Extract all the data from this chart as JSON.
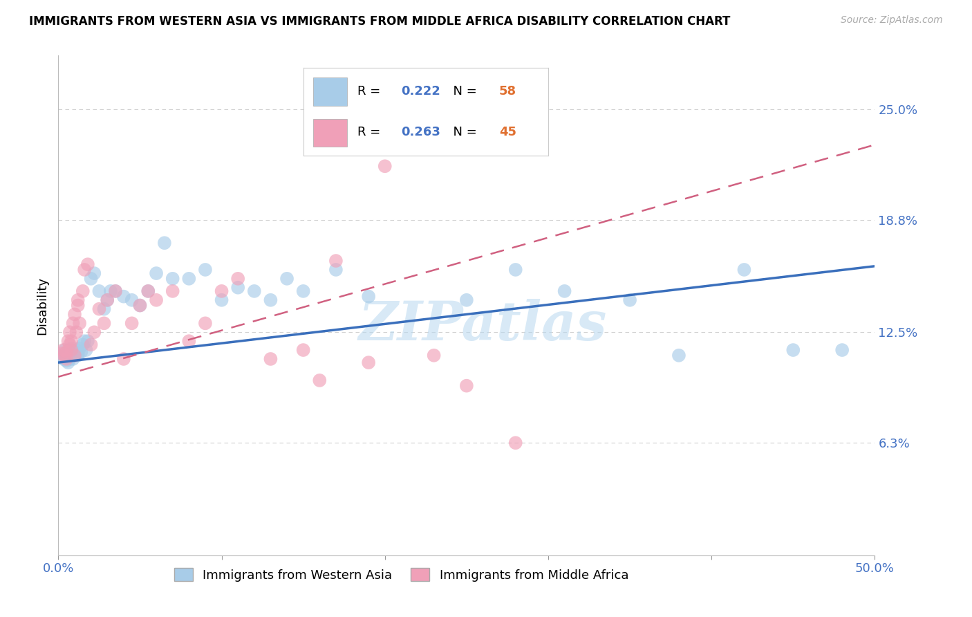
{
  "title": "IMMIGRANTS FROM WESTERN ASIA VS IMMIGRANTS FROM MIDDLE AFRICA DISABILITY CORRELATION CHART",
  "source": "Source: ZipAtlas.com",
  "ylabel": "Disability",
  "xlim": [
    0.0,
    0.5
  ],
  "ylim": [
    0.0,
    0.28
  ],
  "yticks": [
    0.063,
    0.125,
    0.188,
    0.25
  ],
  "ytick_labels": [
    "6.3%",
    "12.5%",
    "18.8%",
    "25.0%"
  ],
  "xtick_positions": [
    0.0,
    0.1,
    0.2,
    0.3,
    0.4,
    0.5
  ],
  "xtick_labels_show": [
    "0.0%",
    "",
    "",
    "",
    "",
    "50.0%"
  ],
  "series1_label": "Immigrants from Western Asia",
  "series1_R": 0.222,
  "series1_N": 58,
  "series1_color": "#a8cce8",
  "series1_line_color": "#3a6fbc",
  "series2_label": "Immigrants from Middle Africa",
  "series2_R": 0.263,
  "series2_N": 45,
  "series2_color": "#f0a0b8",
  "series2_line_color": "#d06080",
  "background_color": "#ffffff",
  "grid_color": "#d0d0d0",
  "watermark": "ZIPatlas",
  "watermark_color": "#b8d8f0",
  "legend_R_color": "#4472c4",
  "legend_N_color": "#e07030",
  "series1_x": [
    0.002,
    0.003,
    0.004,
    0.004,
    0.005,
    0.005,
    0.006,
    0.006,
    0.007,
    0.007,
    0.007,
    0.008,
    0.008,
    0.009,
    0.009,
    0.01,
    0.01,
    0.011,
    0.012,
    0.012,
    0.013,
    0.014,
    0.015,
    0.016,
    0.017,
    0.018,
    0.02,
    0.022,
    0.025,
    0.028,
    0.03,
    0.032,
    0.035,
    0.04,
    0.045,
    0.05,
    0.055,
    0.06,
    0.065,
    0.07,
    0.08,
    0.09,
    0.1,
    0.11,
    0.12,
    0.13,
    0.14,
    0.15,
    0.17,
    0.19,
    0.25,
    0.28,
    0.31,
    0.35,
    0.38,
    0.42,
    0.45,
    0.48
  ],
  "series1_y": [
    0.112,
    0.11,
    0.113,
    0.115,
    0.109,
    0.111,
    0.108,
    0.112,
    0.115,
    0.112,
    0.11,
    0.113,
    0.116,
    0.112,
    0.11,
    0.114,
    0.112,
    0.115,
    0.112,
    0.113,
    0.116,
    0.114,
    0.118,
    0.12,
    0.115,
    0.12,
    0.155,
    0.158,
    0.148,
    0.138,
    0.143,
    0.148,
    0.148,
    0.145,
    0.143,
    0.14,
    0.148,
    0.158,
    0.175,
    0.155,
    0.155,
    0.16,
    0.143,
    0.15,
    0.148,
    0.143,
    0.155,
    0.148,
    0.16,
    0.145,
    0.143,
    0.16,
    0.148,
    0.143,
    0.112,
    0.16,
    0.115,
    0.115
  ],
  "series2_x": [
    0.002,
    0.003,
    0.004,
    0.005,
    0.005,
    0.006,
    0.007,
    0.007,
    0.008,
    0.008,
    0.009,
    0.01,
    0.01,
    0.011,
    0.012,
    0.012,
    0.013,
    0.015,
    0.016,
    0.018,
    0.02,
    0.022,
    0.025,
    0.028,
    0.03,
    0.035,
    0.04,
    0.045,
    0.05,
    0.055,
    0.06,
    0.07,
    0.08,
    0.09,
    0.1,
    0.11,
    0.13,
    0.15,
    0.17,
    0.19,
    0.2,
    0.23,
    0.25,
    0.28,
    0.16
  ],
  "series2_y": [
    0.113,
    0.115,
    0.112,
    0.11,
    0.114,
    0.12,
    0.118,
    0.125,
    0.115,
    0.12,
    0.13,
    0.135,
    0.112,
    0.125,
    0.14,
    0.143,
    0.13,
    0.148,
    0.16,
    0.163,
    0.118,
    0.125,
    0.138,
    0.13,
    0.143,
    0.148,
    0.11,
    0.13,
    0.14,
    0.148,
    0.143,
    0.148,
    0.12,
    0.13,
    0.148,
    0.155,
    0.11,
    0.115,
    0.165,
    0.108,
    0.218,
    0.112,
    0.095,
    0.063,
    0.098
  ],
  "line1_x0": 0.0,
  "line1_y0": 0.108,
  "line1_x1": 0.5,
  "line1_y1": 0.162,
  "line2_x0": 0.0,
  "line2_y0": 0.1,
  "line2_x1": 0.5,
  "line2_y1": 0.23
}
